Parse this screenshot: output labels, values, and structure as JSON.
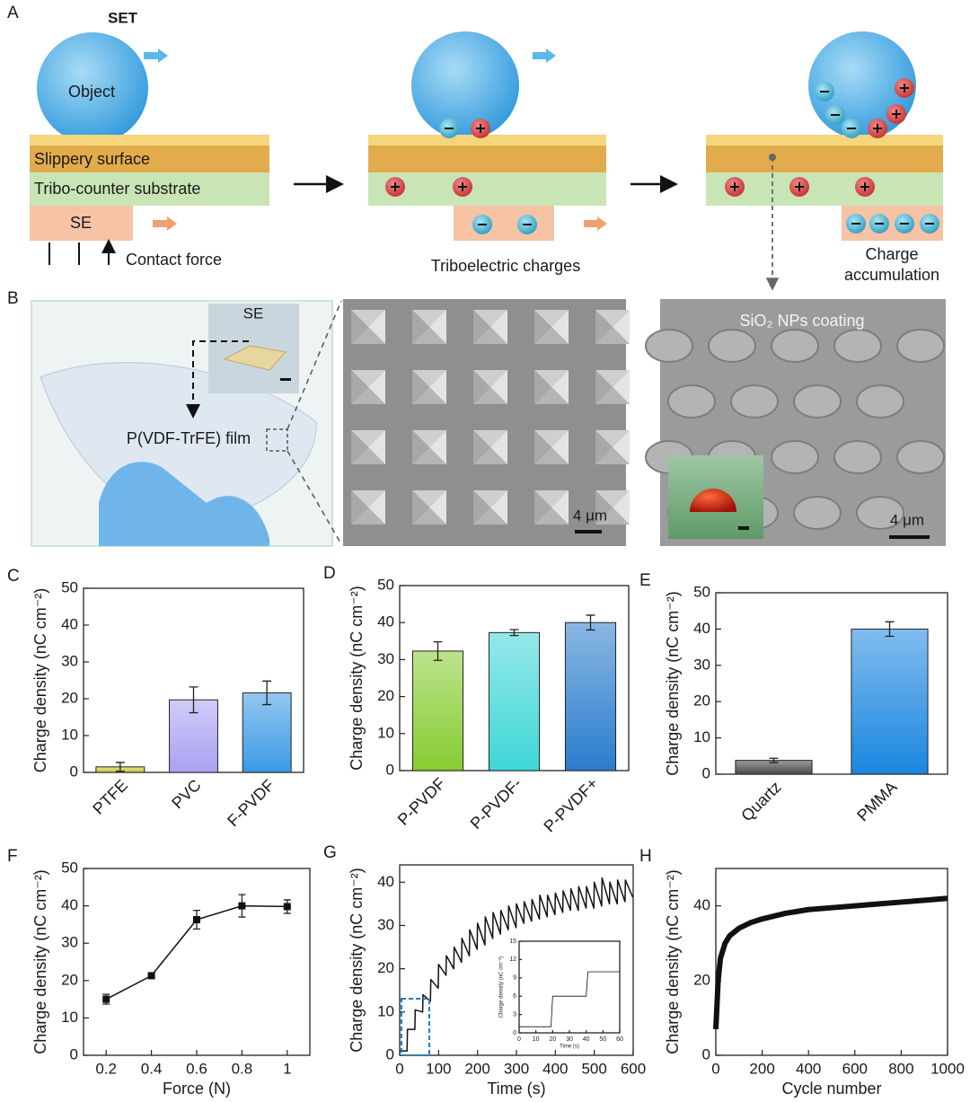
{
  "diagram": {
    "label": "A",
    "title": "SET",
    "object": "Object",
    "slippery_surface": "Slippery surface",
    "substrate": "Tribo-counter substrate",
    "se": "SE",
    "contact_force": "Contact force",
    "triboelectric_charges": "Triboelectric charges",
    "charge_accumulation": [
      "Charge",
      "accumulation"
    ]
  },
  "images": {
    "label": "B",
    "se_inset": "SE",
    "film": "P(VDF-TrFE) film",
    "scale_bar_1": "4 μm",
    "coating": "SiO₂ NPs coating",
    "scale_bar_2": "4 μm"
  },
  "chart_data": [
    {
      "type": "bar",
      "panel": "C",
      "ylabel": "Charge density (nC cm⁻²)",
      "categories": [
        "PTFE",
        "PVC",
        "F-PVDF"
      ],
      "values": [
        1.5,
        19.7,
        21.6
      ],
      "errors": [
        1.2,
        3.5,
        3.2
      ],
      "colors": [
        "#c9c63a",
        "#a9a2f0",
        "#3a9ae6"
      ],
      "ylim": [
        0,
        50
      ],
      "yticks": [
        0,
        10,
        20,
        30,
        40,
        50
      ]
    },
    {
      "type": "bar",
      "panel": "D",
      "ylabel": "Charge density (nC cm⁻²)",
      "categories": [
        "P-PVDF",
        "P-PVDF-",
        "P-PVDF+"
      ],
      "values": [
        32.3,
        37.3,
        40
      ],
      "errors": [
        2.5,
        0.8,
        2
      ],
      "colors": [
        "#86cc30",
        "#3fd6d6",
        "#2a7ccc"
      ],
      "ylim": [
        0,
        50
      ],
      "yticks": [
        0,
        10,
        20,
        30,
        40,
        50
      ]
    },
    {
      "type": "bar",
      "panel": "E",
      "ylabel": "Charge density (nC cm⁻²)",
      "categories": [
        "Quartz",
        "PMMA"
      ],
      "values": [
        3.8,
        40
      ],
      "errors": [
        0.6,
        2
      ],
      "colors": [
        "#4a4a4a",
        "#1a86e0"
      ],
      "ylim": [
        0,
        50
      ],
      "yticks": [
        0,
        10,
        20,
        30,
        40,
        50
      ]
    },
    {
      "type": "line",
      "panel": "F",
      "ylabel": "Charge density (nC cm⁻²)",
      "xlabel": "Force (N)",
      "x": [
        0.2,
        0.4,
        0.6,
        0.8,
        1
      ],
      "values": [
        15,
        21.3,
        36.3,
        40,
        39.8
      ],
      "errors": [
        1.3,
        0.6,
        2.5,
        3,
        1.8
      ],
      "color": "#111111",
      "markers": true,
      "xlim": [
        0.1,
        1.1
      ],
      "xticks": [
        0.2,
        0.4,
        0.6,
        0.8,
        1
      ],
      "ylim": [
        0,
        50
      ],
      "yticks": [
        0,
        10,
        20,
        30,
        40,
        50
      ]
    },
    {
      "type": "line",
      "panel": "G",
      "ylabel": "Charge density (nC cm⁻²)",
      "xlabel": "Time (s)",
      "x": [
        0,
        19,
        20,
        39,
        40,
        59,
        60,
        79,
        80,
        99,
        100,
        119,
        120,
        139,
        140,
        159,
        160,
        179,
        180,
        199,
        200,
        219,
        220,
        239,
        240,
        259,
        260,
        279,
        280,
        299,
        300,
        319,
        320,
        339,
        340,
        359,
        360,
        379,
        380,
        399,
        400,
        419,
        420,
        439,
        440,
        459,
        460,
        479,
        480,
        499,
        500,
        519,
        520,
        539,
        540,
        559,
        560,
        579,
        580,
        599
      ],
      "values": [
        1,
        1,
        6,
        6,
        10.5,
        10,
        14,
        12.5,
        17.5,
        15.5,
        21,
        18.5,
        23,
        20,
        25,
        21.5,
        27,
        23,
        29,
        24.5,
        30.5,
        25.5,
        32,
        27,
        33,
        28,
        33.5,
        29,
        34.5,
        29.5,
        35,
        30.5,
        35.5,
        31,
        36,
        31.5,
        37,
        32,
        37,
        32.5,
        37.5,
        33,
        38,
        33.5,
        38.5,
        33.5,
        39,
        34,
        39,
        34,
        40,
        34.5,
        41,
        35,
        40,
        35,
        40.5,
        35.5,
        40.5,
        36.5
      ],
      "color": "#111111",
      "xlim": [
        0,
        600
      ],
      "xticks": [
        0,
        100,
        200,
        300,
        400,
        500,
        600
      ],
      "ylim": [
        0,
        44
      ],
      "yticks": [
        0,
        10,
        20,
        30,
        40
      ]
    },
    {
      "type": "line",
      "panel": "H",
      "ylabel": "Charge density (nC cm⁻²)",
      "xlabel": "Cycle number",
      "x": [
        0,
        10,
        20,
        40,
        60,
        100,
        150,
        200,
        300,
        400,
        500,
        600,
        700,
        800,
        900,
        1000
      ],
      "values": [
        7,
        20,
        26,
        30,
        32,
        34,
        35.5,
        36.5,
        38,
        39,
        39.5,
        40,
        40.5,
        41,
        41.5,
        42
      ],
      "color": "#111111",
      "xlim": [
        0,
        1000
      ],
      "xticks": [
        0,
        200,
        400,
        600,
        800,
        1000
      ],
      "ylim": [
        0,
        50
      ],
      "yticks": [
        0,
        20,
        40
      ]
    },
    {
      "type": "line",
      "ylabel": "Charge density (nC cm⁻²)",
      "xlabel": "Time (s)",
      "x": [
        0,
        19,
        20,
        40,
        41,
        60
      ],
      "values": [
        1,
        1,
        6,
        6,
        10,
        10
      ],
      "color": "#111111",
      "xlim": [
        0,
        60
      ],
      "xticks": [
        0,
        10,
        20,
        30,
        40,
        50,
        60
      ],
      "ylim": [
        0,
        15
      ],
      "yticks": [
        0,
        3,
        6,
        9,
        12,
        15
      ]
    }
  ]
}
